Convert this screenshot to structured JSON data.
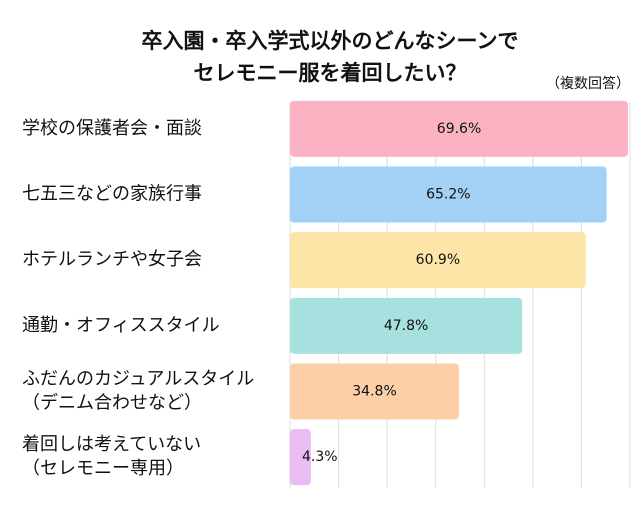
{
  "chart_data": {
    "type": "bar",
    "orientation": "horizontal",
    "title": [
      "卒入園・卒入学式以外のどんなシーンで",
      "セレモニー服を着回したい？"
    ],
    "subtitle": "（複数回答）",
    "categories": [
      "学校の保護者会・面談",
      "七五三などの家族行事",
      "ホテルランチや女子会",
      "通勤・オフィススタイル",
      [
        "ふだんのカジュアルスタイル",
        "（デニム合わせなど）"
      ],
      [
        "着回しは考えていない",
        "（セレモニー専用）"
      ]
    ],
    "values": [
      69.6,
      65.2,
      60.9,
      47.8,
      34.8,
      4.3
    ],
    "value_labels": [
      "69.6%",
      "65.2%",
      "60.9%",
      "47.8%",
      "34.8%",
      "4.3%"
    ],
    "colors": [
      "#fbb3c3",
      "#a3d1f5",
      "#fde5a8",
      "#a6e0df",
      "#fccfa6",
      "#ebbcf3"
    ],
    "xlim": [
      0,
      70
    ],
    "xticks": [
      0,
      10,
      20,
      30,
      40,
      50,
      60,
      70
    ],
    "grid": true
  }
}
